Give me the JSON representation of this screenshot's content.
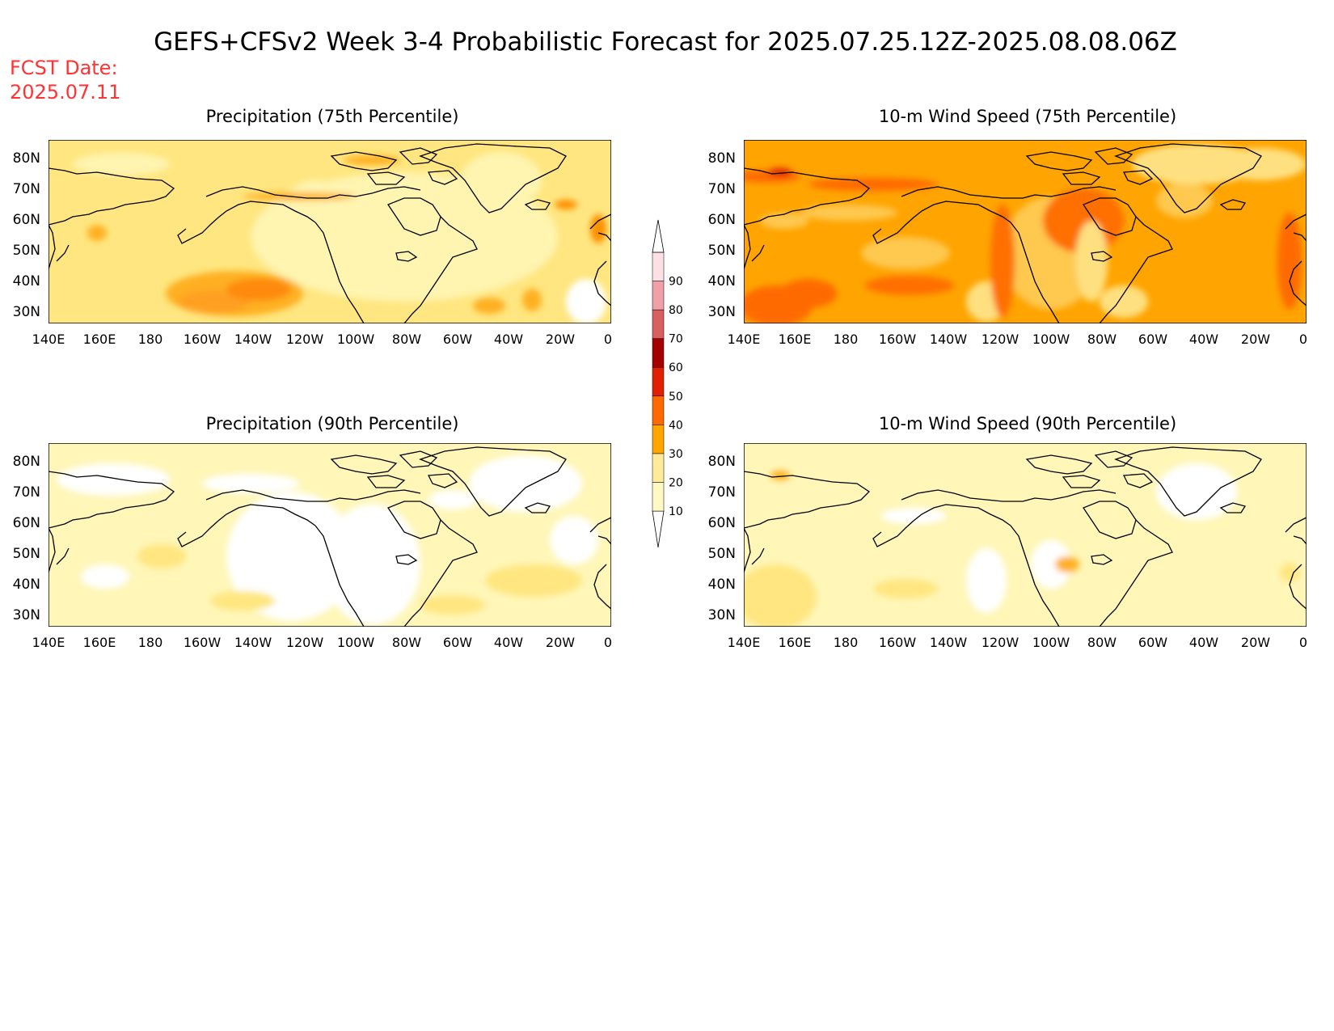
{
  "title": "GEFS+CFSv2 Week 3-4 Probabilistic Forecast for 2025.07.25.12Z-2025.08.08.06Z",
  "fcst_date": {
    "label": "FCST Date:",
    "value": "2025.07.11"
  },
  "panels": [
    {
      "id": "precip75",
      "title": "Precipitation (75th Percentile)"
    },
    {
      "id": "wind75",
      "title": "10-m Wind Speed (75th Percentile)"
    },
    {
      "id": "precip90",
      "title": "Precipitation (90th Percentile)"
    },
    {
      "id": "wind90",
      "title": "10-m Wind Speed (90th Percentile)"
    }
  ],
  "lat_labels": [
    "80N",
    "70N",
    "60N",
    "50N",
    "40N",
    "30N"
  ],
  "lon_labels": [
    "140E",
    "160E",
    "180",
    "160W",
    "140W",
    "120W",
    "100W",
    "80W",
    "60W",
    "40W",
    "20W",
    "0"
  ],
  "colorbar": {
    "levels": [
      "10",
      "20",
      "30",
      "40",
      "50",
      "60",
      "70",
      "80",
      "90"
    ],
    "colors": [
      "#fff9c4",
      "#ffeb99",
      "#ffa500",
      "#ff6a00",
      "#e02000",
      "#a50000",
      "#d96060",
      "#f0a0a8",
      "#fde0e6"
    ]
  },
  "colors": {
    "title": "#000000",
    "fcst": "#ff3333",
    "land_outline": "#000000"
  }
}
